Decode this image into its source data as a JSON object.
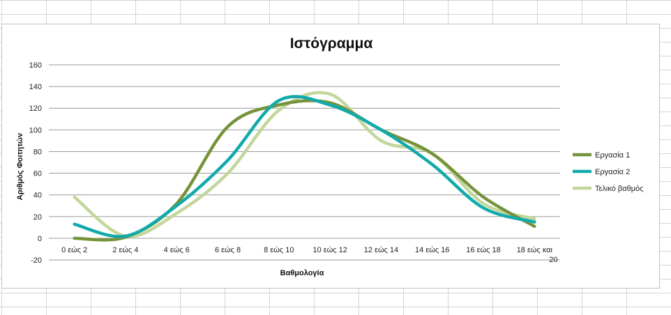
{
  "chart_data": {
    "type": "line",
    "title": "Ιστόγραμμα",
    "xlabel": "Βαθμολογία",
    "ylabel": "Αριθμός Φοιτητών",
    "categories": [
      "0 εώς 2",
      "2 εώς 4",
      "4 εώς 6",
      "6 εώς 8",
      "8 εώς 10",
      "10 εώς 12",
      "12 εώς 14",
      "14 εώς 16",
      "16 εώς 18",
      "18 εώς και 20"
    ],
    "series": [
      {
        "name": "Εργασία 1",
        "values": [
          0,
          1,
          32,
          103,
          123,
          125,
          100,
          78,
          38,
          11
        ],
        "color": "#76933c"
      },
      {
        "name": "Εργασία 2",
        "values": [
          13,
          2,
          30,
          72,
          127,
          123,
          100,
          68,
          28,
          15
        ],
        "color": "#12aaaa"
      },
      {
        "name": "Τελικό βαθμός",
        "values": [
          38,
          2,
          23,
          60,
          118,
          133,
          90,
          78,
          32,
          18
        ],
        "color": "#c3d69b"
      }
    ],
    "ylim": [
      -20,
      160
    ],
    "yticks": [
      -20,
      0,
      20,
      40,
      60,
      80,
      100,
      120,
      140,
      160
    ],
    "grid": true,
    "legend": "right"
  }
}
